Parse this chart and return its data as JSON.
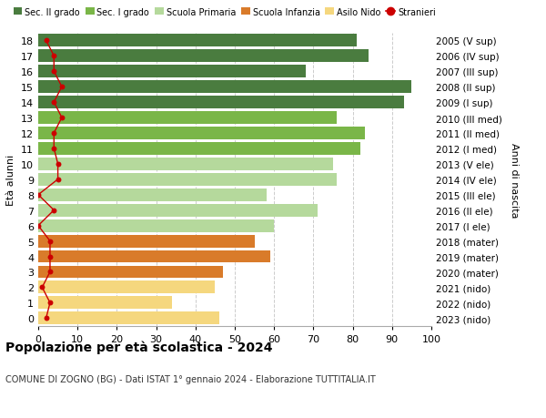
{
  "ages": [
    0,
    1,
    2,
    3,
    4,
    5,
    6,
    7,
    8,
    9,
    10,
    11,
    12,
    13,
    14,
    15,
    16,
    17,
    18
  ],
  "years": [
    "2023 (nido)",
    "2022 (nido)",
    "2021 (nido)",
    "2020 (mater)",
    "2019 (mater)",
    "2018 (mater)",
    "2017 (I ele)",
    "2016 (II ele)",
    "2015 (III ele)",
    "2014 (IV ele)",
    "2013 (V ele)",
    "2012 (I med)",
    "2011 (II med)",
    "2010 (III med)",
    "2009 (I sup)",
    "2008 (II sup)",
    "2007 (III sup)",
    "2006 (IV sup)",
    "2005 (V sup)"
  ],
  "bar_values": [
    46,
    34,
    45,
    47,
    59,
    55,
    60,
    71,
    58,
    76,
    75,
    82,
    83,
    76,
    93,
    95,
    68,
    84,
    81
  ],
  "stranieri": [
    2,
    3,
    1,
    3,
    3,
    3,
    0,
    4,
    0,
    5,
    5,
    4,
    4,
    6,
    4,
    6,
    4,
    4,
    2
  ],
  "color_by_age": {
    "0": "#f5d77e",
    "1": "#f5d77e",
    "2": "#f5d77e",
    "3": "#d97b2a",
    "4": "#d97b2a",
    "5": "#d97b2a",
    "6": "#b5d99c",
    "7": "#b5d99c",
    "8": "#b5d99c",
    "9": "#b5d99c",
    "10": "#b5d99c",
    "11": "#7ab648",
    "12": "#7ab648",
    "13": "#7ab648",
    "14": "#4a7c3f",
    "15": "#4a7c3f",
    "16": "#4a7c3f",
    "17": "#4a7c3f",
    "18": "#4a7c3f"
  },
  "stranieri_color": "#cc0000",
  "title": "Popolazione per età scolastica - 2024",
  "subtitle": "COMUNE DI ZOGNO (BG) - Dati ISTAT 1° gennaio 2024 - Elaborazione TUTTITALIA.IT",
  "ylabel_left": "Età alunni",
  "ylabel_right": "Anni di nascita",
  "xlim": [
    0,
    100
  ],
  "bg_color": "#ffffff",
  "grid_color": "#cccccc",
  "legend_items": [
    "Sec. II grado",
    "Sec. I grado",
    "Scuola Primaria",
    "Scuola Infanzia",
    "Asilo Nido",
    "Stranieri"
  ],
  "legend_colors": [
    "#4a7c3f",
    "#7ab648",
    "#b5d99c",
    "#d97b2a",
    "#f5d77e",
    "#cc0000"
  ]
}
